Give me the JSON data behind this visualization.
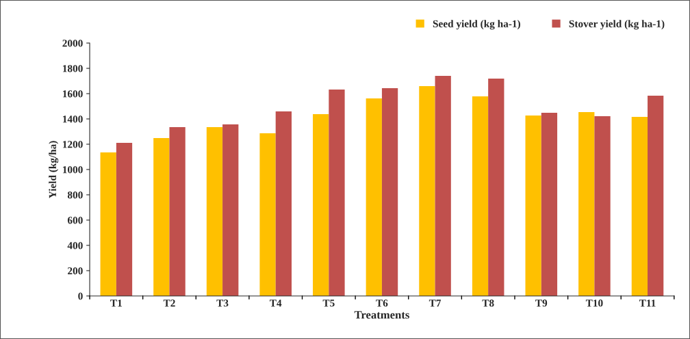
{
  "chart_data": {
    "type": "bar",
    "xlabel": "Treatments",
    "ylabel": "Yield (kg/ha)",
    "categories": [
      "T1",
      "T2",
      "T3",
      "T4",
      "T5",
      "T6",
      "T7",
      "T8",
      "T9",
      "T10",
      "T11"
    ],
    "series": [
      {
        "name": "Seed yield (kg ha-1)",
        "color": "#ffc000",
        "values": [
          1135,
          1249,
          1335,
          1286,
          1438,
          1562,
          1659,
          1578,
          1427,
          1454,
          1416
        ]
      },
      {
        "name": "Stover yield (kg ha-1)",
        "color": "#c0504d",
        "values": [
          1211,
          1335,
          1357,
          1459,
          1632,
          1643,
          1741,
          1719,
          1449,
          1422,
          1584
        ]
      }
    ],
    "ylim": [
      0,
      2000
    ],
    "yticks": [
      0,
      200,
      400,
      600,
      800,
      1000,
      1200,
      1400,
      1600,
      1800,
      2000
    ],
    "legend": "top right",
    "grid": false
  }
}
